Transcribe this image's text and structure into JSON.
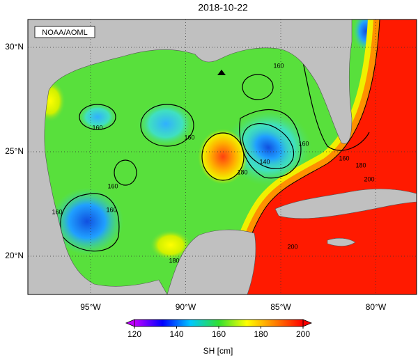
{
  "title": "2018-10-22",
  "credit": "NOAA/AOML",
  "lat_labels": [
    {
      "value": 30,
      "label": "30°N"
    },
    {
      "value": 25,
      "label": "25°N"
    },
    {
      "value": 20,
      "label": "20°N"
    }
  ],
  "lon_labels": [
    {
      "value": 95,
      "label": "95°W"
    },
    {
      "value": 90,
      "label": "90°W"
    },
    {
      "value": 85,
      "label": "85°W"
    },
    {
      "value": 80,
      "label": "80°W"
    }
  ],
  "colorbar": {
    "label": "SH [cm]",
    "ticks": [
      120,
      140,
      160,
      180,
      200
    ],
    "colors": [
      "#c000ff",
      "#0000ff",
      "#00c8ff",
      "#30e030",
      "#ffff00",
      "#ff8000",
      "#ff0000"
    ]
  },
  "contour_labels": [
    160,
    160,
    160,
    160,
    160,
    180,
    140,
    160,
    160,
    160,
    180,
    200,
    200,
    180
  ]
}
